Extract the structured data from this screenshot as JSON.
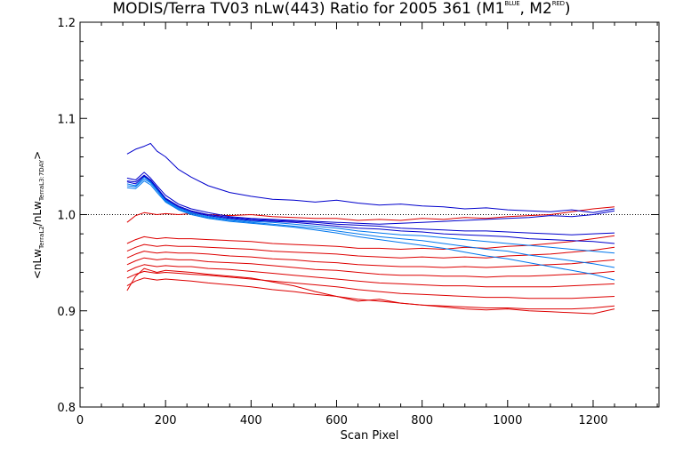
{
  "chart_data": {
    "type": "line",
    "title": {
      "main": "MODIS/Terra TV03 nLw(443) Ratio for 2005 361 (M1",
      "m1_sup": "BLUE",
      "mid": ", M2",
      "m2_sup": "RED",
      "end": ")"
    },
    "xlabel": "Scan Pixel",
    "ylabel": {
      "start": "<nLw",
      "sub1": "TerraL2",
      "mid": "/nLw",
      "sub2": "TerraL3:7DAY",
      "end": ">"
    },
    "xlim": [
      0,
      1354
    ],
    "ylim": [
      0.8,
      1.2
    ],
    "x_ticks": [
      "0",
      "200",
      "400",
      "600",
      "800",
      "1000",
      "1200"
    ],
    "y_ticks": [
      "0.8",
      "0.9",
      "1.0",
      "1.1",
      "1.2"
    ],
    "reference_line": 1.0,
    "x": [
      110,
      130,
      150,
      165,
      180,
      200,
      230,
      260,
      300,
      350,
      400,
      450,
      500,
      550,
      600,
      650,
      700,
      750,
      800,
      850,
      900,
      950,
      1000,
      1050,
      1100,
      1150,
      1200,
      1250
    ],
    "colors": {
      "M1": "#0000cc",
      "M1_light": "#0077ee",
      "M2": "#dd0000"
    },
    "series": [
      {
        "group": "M1",
        "color": "M1",
        "values": [
          1.063,
          1.068,
          1.071,
          1.074,
          1.066,
          1.06,
          1.047,
          1.039,
          1.03,
          1.023,
          1.019,
          1.016,
          1.015,
          1.013,
          1.015,
          1.012,
          1.01,
          1.011,
          1.009,
          1.008,
          1.006,
          1.007,
          1.005,
          1.004,
          1.003,
          1.005,
          1.002,
          1.006
        ]
      },
      {
        "group": "M1",
        "color": "M1",
        "values": [
          1.038,
          1.036,
          1.044,
          1.038,
          1.03,
          1.02,
          1.011,
          1.006,
          1.002,
          0.998,
          0.996,
          0.995,
          0.994,
          0.993,
          0.992,
          0.991,
          0.99,
          0.991,
          0.992,
          0.993,
          0.994,
          0.995,
          0.996,
          0.997,
          0.999,
          0.998,
          1.0,
          1.004
        ]
      },
      {
        "group": "M1",
        "color": "M1",
        "values": [
          1.035,
          1.034,
          1.041,
          1.036,
          1.028,
          1.017,
          1.009,
          1.004,
          1.0,
          0.997,
          0.995,
          0.994,
          0.993,
          0.992,
          0.99,
          0.989,
          0.988,
          0.986,
          0.985,
          0.984,
          0.983,
          0.983,
          0.982,
          0.981,
          0.98,
          0.979,
          0.98,
          0.981
        ]
      },
      {
        "group": "M1",
        "color": "M1",
        "values": [
          1.034,
          1.032,
          1.04,
          1.035,
          1.027,
          1.016,
          1.008,
          1.003,
          0.999,
          0.996,
          0.994,
          0.993,
          0.992,
          0.99,
          0.988,
          0.986,
          0.985,
          0.983,
          0.982,
          0.98,
          0.979,
          0.978,
          0.977,
          0.975,
          0.974,
          0.973,
          0.972,
          0.97
        ]
      },
      {
        "group": "M1",
        "color": "M1_light",
        "values": [
          1.032,
          1.03,
          1.039,
          1.034,
          1.026,
          1.015,
          1.007,
          1.002,
          0.998,
          0.995,
          0.993,
          0.992,
          0.99,
          0.988,
          0.986,
          0.983,
          0.981,
          0.979,
          0.978,
          0.976,
          0.974,
          0.972,
          0.97,
          0.968,
          0.966,
          0.964,
          0.962,
          0.96
        ]
      },
      {
        "group": "M1",
        "color": "M1_light",
        "values": [
          1.03,
          1.029,
          1.037,
          1.033,
          1.025,
          1.014,
          1.006,
          1.001,
          0.997,
          0.994,
          0.992,
          0.99,
          0.988,
          0.986,
          0.983,
          0.98,
          0.977,
          0.975,
          0.973,
          0.97,
          0.967,
          0.964,
          0.962,
          0.958,
          0.955,
          0.952,
          0.949,
          0.945
        ]
      },
      {
        "group": "M1",
        "color": "M1_light",
        "values": [
          1.028,
          1.027,
          1.035,
          1.031,
          1.023,
          1.013,
          1.005,
          1.0,
          0.996,
          0.993,
          0.991,
          0.989,
          0.987,
          0.984,
          0.981,
          0.977,
          0.974,
          0.971,
          0.968,
          0.965,
          0.961,
          0.957,
          0.954,
          0.95,
          0.946,
          0.942,
          0.938,
          0.932
        ]
      },
      {
        "group": "M2",
        "color": "M2",
        "values": [
          0.992,
          0.999,
          1.002,
          1.001,
          1.0,
          1.001,
          1.0,
          1.001,
          1.0,
          0.999,
          1.0,
          0.998,
          0.997,
          0.996,
          0.996,
          0.994,
          0.995,
          0.994,
          0.996,
          0.995,
          0.997,
          0.996,
          0.998,
          0.999,
          1.0,
          1.003,
          1.006,
          1.008
        ]
      },
      {
        "group": "M2",
        "color": "M2",
        "values": [
          0.97,
          0.974,
          0.977,
          0.976,
          0.975,
          0.976,
          0.975,
          0.975,
          0.974,
          0.973,
          0.972,
          0.97,
          0.969,
          0.968,
          0.967,
          0.965,
          0.965,
          0.964,
          0.965,
          0.964,
          0.966,
          0.965,
          0.967,
          0.968,
          0.97,
          0.972,
          0.975,
          0.978
        ]
      },
      {
        "group": "M2",
        "color": "M2",
        "values": [
          0.962,
          0.966,
          0.969,
          0.968,
          0.967,
          0.968,
          0.967,
          0.967,
          0.966,
          0.965,
          0.964,
          0.962,
          0.961,
          0.96,
          0.959,
          0.957,
          0.956,
          0.955,
          0.956,
          0.955,
          0.956,
          0.955,
          0.957,
          0.958,
          0.959,
          0.961,
          0.963,
          0.966
        ]
      },
      {
        "group": "M2",
        "color": "M2",
        "values": [
          0.955,
          0.959,
          0.962,
          0.961,
          0.96,
          0.961,
          0.96,
          0.96,
          0.959,
          0.957,
          0.956,
          0.954,
          0.953,
          0.951,
          0.95,
          0.948,
          0.947,
          0.946,
          0.946,
          0.945,
          0.946,
          0.945,
          0.946,
          0.947,
          0.948,
          0.949,
          0.951,
          0.953
        ]
      },
      {
        "group": "M2",
        "color": "M2",
        "values": [
          0.948,
          0.952,
          0.955,
          0.954,
          0.953,
          0.954,
          0.953,
          0.953,
          0.951,
          0.95,
          0.949,
          0.947,
          0.945,
          0.943,
          0.942,
          0.94,
          0.938,
          0.937,
          0.937,
          0.936,
          0.936,
          0.935,
          0.936,
          0.936,
          0.937,
          0.938,
          0.939,
          0.941
        ]
      },
      {
        "group": "M2",
        "color": "M2",
        "values": [
          0.941,
          0.945,
          0.948,
          0.947,
          0.946,
          0.947,
          0.946,
          0.946,
          0.944,
          0.943,
          0.941,
          0.939,
          0.937,
          0.935,
          0.933,
          0.931,
          0.929,
          0.928,
          0.927,
          0.926,
          0.926,
          0.925,
          0.925,
          0.925,
          0.925,
          0.926,
          0.927,
          0.928
        ]
      },
      {
        "group": "M2",
        "color": "M2",
        "values": [
          0.934,
          0.938,
          0.941,
          0.94,
          0.939,
          0.94,
          0.939,
          0.938,
          0.937,
          0.935,
          0.933,
          0.931,
          0.929,
          0.927,
          0.925,
          0.922,
          0.92,
          0.918,
          0.917,
          0.916,
          0.915,
          0.914,
          0.914,
          0.913,
          0.913,
          0.913,
          0.914,
          0.915
        ]
      },
      {
        "group": "M2",
        "color": "M2",
        "values": [
          0.926,
          0.931,
          0.934,
          0.933,
          0.932,
          0.933,
          0.932,
          0.931,
          0.929,
          0.927,
          0.925,
          0.922,
          0.92,
          0.917,
          0.915,
          0.912,
          0.91,
          0.908,
          0.906,
          0.905,
          0.904,
          0.903,
          0.903,
          0.902,
          0.902,
          0.902,
          0.903,
          0.905
        ]
      },
      {
        "group": "M2",
        "color": "M2",
        "values": [
          0.921,
          0.936,
          0.944,
          0.942,
          0.94,
          0.942,
          0.941,
          0.94,
          0.938,
          0.936,
          0.934,
          0.93,
          0.926,
          0.92,
          0.915,
          0.91,
          0.912,
          0.908,
          0.906,
          0.904,
          0.902,
          0.901,
          0.902,
          0.9,
          0.899,
          0.898,
          0.897,
          0.902
        ]
      }
    ]
  }
}
